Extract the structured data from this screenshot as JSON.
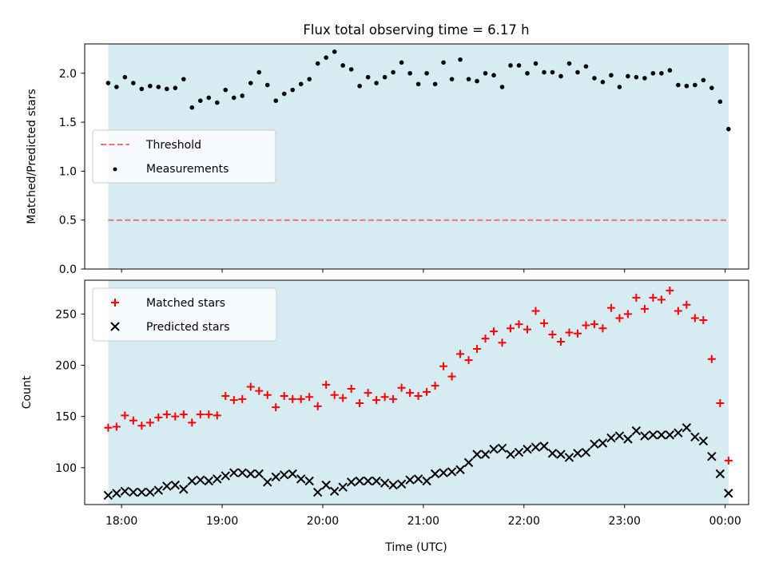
{
  "figure": {
    "title": "Flux total observing time = 6.17 h",
    "xlabel": "Time (UTC)",
    "background_color": "#add8e6",
    "background_alpha": 0.5
  },
  "chart_data": [
    {
      "type": "scatter",
      "name": "ratio-panel",
      "ylabel": "Matched/Predicted stars",
      "ylim": [
        0,
        2.3
      ],
      "xlim": [
        "17:38",
        "00:14"
      ],
      "x_ticks": [
        "18:00",
        "19:00",
        "20:00",
        "21:00",
        "22:00",
        "23:00",
        "00:00"
      ],
      "y_ticks": [
        "0.0",
        "0.5",
        "1.0",
        "1.5",
        "2.0"
      ],
      "shaded_region": [
        "17:52",
        "00:02"
      ],
      "legend_position": "center-left",
      "series": [
        {
          "name": "Threshold",
          "style": "dashed-line",
          "color": "#f07070",
          "value": 0.5
        },
        {
          "name": "Measurements",
          "style": "dot",
          "color": "#000000",
          "x": [
            "17:52",
            "17:57",
            "18:02",
            "18:07",
            "18:12",
            "18:17",
            "18:22",
            "18:27",
            "18:32",
            "18:37",
            "18:42",
            "18:47",
            "18:52",
            "18:57",
            "19:02",
            "19:07",
            "19:12",
            "19:17",
            "19:22",
            "19:27",
            "19:32",
            "19:37",
            "19:42",
            "19:47",
            "19:52",
            "19:57",
            "20:02",
            "20:07",
            "20:12",
            "20:17",
            "20:22",
            "20:27",
            "20:32",
            "20:37",
            "20:42",
            "20:47",
            "20:52",
            "20:57",
            "21:02",
            "21:07",
            "21:12",
            "21:17",
            "21:22",
            "21:27",
            "21:32",
            "21:37",
            "21:42",
            "21:47",
            "21:52",
            "21:57",
            "22:02",
            "22:07",
            "22:12",
            "22:17",
            "22:22",
            "22:27",
            "22:32",
            "22:37",
            "22:42",
            "22:47",
            "22:52",
            "22:57",
            "23:02",
            "23:07",
            "23:12",
            "23:17",
            "23:22",
            "23:27",
            "23:32",
            "23:37",
            "23:42",
            "23:47",
            "23:52",
            "23:57",
            "00:02"
          ],
          "y": [
            1.9,
            1.86,
            1.96,
            1.9,
            1.84,
            1.87,
            1.86,
            1.84,
            1.85,
            1.94,
            1.65,
            1.72,
            1.75,
            1.7,
            1.83,
            1.75,
            1.77,
            1.9,
            2.01,
            1.88,
            1.72,
            1.79,
            1.83,
            1.89,
            1.94,
            2.1,
            2.16,
            2.22,
            2.08,
            2.04,
            1.87,
            1.96,
            1.9,
            1.96,
            2.01,
            2.11,
            2.0,
            1.89,
            2.0,
            1.89,
            2.11,
            1.94,
            2.14,
            1.94,
            1.92,
            2.0,
            1.98,
            1.86,
            2.08,
            2.08,
            2.0,
            2.1,
            2.01,
            2.01,
            1.97,
            2.1,
            2.01,
            2.07,
            1.95,
            1.91,
            1.98,
            1.86,
            1.97,
            1.96,
            1.95,
            2.0,
            2.0,
            2.03,
            1.88,
            1.87,
            1.88,
            1.93,
            1.85,
            1.71,
            1.43
          ]
        }
      ]
    },
    {
      "type": "scatter",
      "name": "count-panel",
      "ylabel": "Count",
      "ylim": [
        64,
        283
      ],
      "xlim": [
        "17:38",
        "00:14"
      ],
      "x_ticks": [
        "18:00",
        "19:00",
        "20:00",
        "21:00",
        "22:00",
        "23:00",
        "00:00"
      ],
      "y_ticks": [
        "100",
        "150",
        "200",
        "250"
      ],
      "shaded_region": [
        "17:52",
        "00:02"
      ],
      "legend_position": "top-left",
      "series": [
        {
          "name": "Matched stars",
          "marker": "plus",
          "color": "#ff0000",
          "x": [
            "17:52",
            "17:57",
            "18:02",
            "18:07",
            "18:12",
            "18:17",
            "18:22",
            "18:27",
            "18:32",
            "18:37",
            "18:42",
            "18:47",
            "18:52",
            "18:57",
            "19:02",
            "19:07",
            "19:12",
            "19:17",
            "19:22",
            "19:27",
            "19:32",
            "19:37",
            "19:42",
            "19:47",
            "19:52",
            "19:57",
            "20:02",
            "20:07",
            "20:12",
            "20:17",
            "20:22",
            "20:27",
            "20:32",
            "20:37",
            "20:42",
            "20:47",
            "20:52",
            "20:57",
            "21:02",
            "21:07",
            "21:12",
            "21:17",
            "21:22",
            "21:27",
            "21:32",
            "21:37",
            "21:42",
            "21:47",
            "21:52",
            "21:57",
            "22:02",
            "22:07",
            "22:12",
            "22:17",
            "22:22",
            "22:27",
            "22:32",
            "22:37",
            "22:42",
            "22:47",
            "22:52",
            "22:57",
            "23:02",
            "23:07",
            "23:12",
            "23:17",
            "23:22",
            "23:27",
            "23:32",
            "23:37",
            "23:42",
            "23:47",
            "23:52",
            "23:57",
            "00:02"
          ],
          "y": [
            139,
            140,
            151,
            146,
            141,
            144,
            149,
            152,
            150,
            152,
            144,
            152,
            152,
            151,
            170,
            166,
            167,
            179,
            175,
            171,
            159,
            170,
            167,
            167,
            169,
            160,
            181,
            171,
            168,
            177,
            163,
            173,
            166,
            169,
            167,
            178,
            173,
            170,
            174,
            180,
            199,
            189,
            211,
            205,
            216,
            226,
            233,
            222,
            236,
            240,
            235,
            253,
            241,
            230,
            223,
            232,
            231,
            239,
            240,
            236,
            256,
            246,
            250,
            266,
            255,
            266,
            264,
            273,
            253,
            259,
            246,
            244,
            206,
            163,
            107
          ]
        },
        {
          "name": "Predicted stars",
          "marker": "x",
          "color": "#000000",
          "x": [
            "17:52",
            "17:57",
            "18:02",
            "18:07",
            "18:12",
            "18:17",
            "18:22",
            "18:27",
            "18:32",
            "18:37",
            "18:42",
            "18:47",
            "18:52",
            "18:57",
            "19:02",
            "19:07",
            "19:12",
            "19:17",
            "19:22",
            "19:27",
            "19:32",
            "19:37",
            "19:42",
            "19:47",
            "19:52",
            "19:57",
            "20:02",
            "20:07",
            "20:12",
            "20:17",
            "20:22",
            "20:27",
            "20:32",
            "20:37",
            "20:42",
            "20:47",
            "20:52",
            "20:57",
            "21:02",
            "21:07",
            "21:12",
            "21:17",
            "21:22",
            "21:27",
            "21:32",
            "21:37",
            "21:42",
            "21:47",
            "21:52",
            "21:57",
            "22:02",
            "22:07",
            "22:12",
            "22:17",
            "22:22",
            "22:27",
            "22:32",
            "22:37",
            "22:42",
            "22:47",
            "22:52",
            "22:57",
            "23:02",
            "23:07",
            "23:12",
            "23:17",
            "23:22",
            "23:27",
            "23:32",
            "23:37",
            "23:42",
            "23:47",
            "23:52",
            "23:57",
            "00:02"
          ],
          "y": [
            73,
            75,
            77,
            76,
            76,
            76,
            78,
            82,
            83,
            79,
            87,
            88,
            87,
            89,
            92,
            95,
            95,
            94,
            94,
            86,
            91,
            93,
            94,
            89,
            87,
            76,
            83,
            77,
            81,
            86,
            87,
            87,
            87,
            85,
            83,
            84,
            88,
            89,
            87,
            94,
            95,
            96,
            98,
            105,
            113,
            113,
            118,
            119,
            113,
            115,
            118,
            120,
            121,
            114,
            113,
            110,
            114,
            115,
            123,
            124,
            129,
            131,
            128,
            136,
            131,
            132,
            132,
            132,
            134,
            139,
            130,
            126,
            111,
            94,
            75
          ]
        }
      ]
    }
  ]
}
